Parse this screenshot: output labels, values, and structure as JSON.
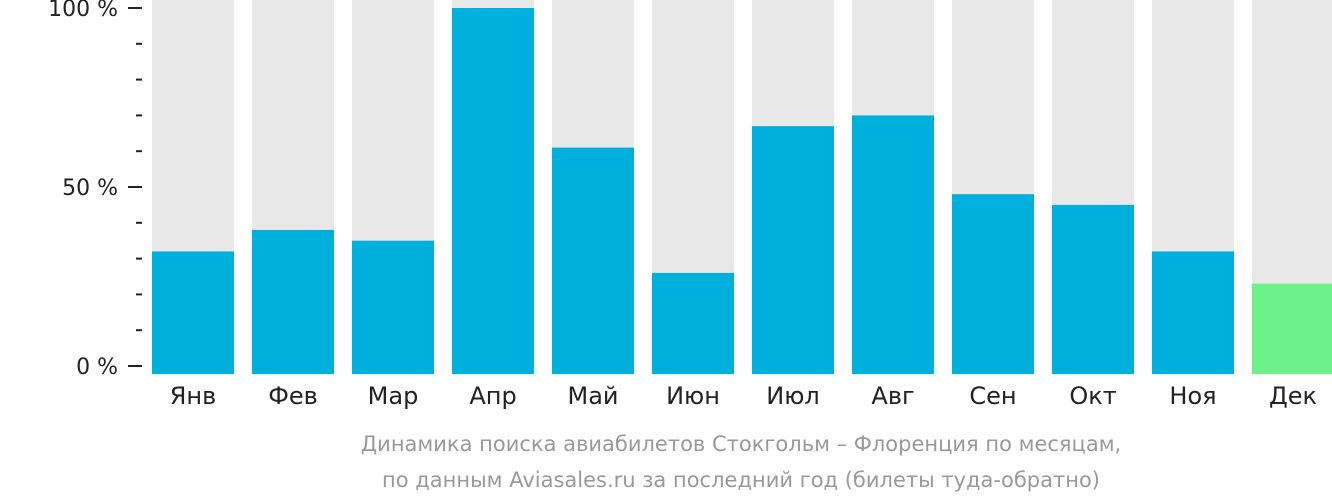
{
  "chart_data": {
    "type": "bar",
    "categories": [
      "Янв",
      "Фев",
      "Мар",
      "Апр",
      "Май",
      "Июн",
      "Июл",
      "Авг",
      "Сен",
      "Окт",
      "Ноя",
      "Дек"
    ],
    "values": [
      32,
      38,
      35,
      100,
      61,
      26,
      67,
      70,
      48,
      45,
      32,
      23
    ],
    "highlight_index": 11,
    "y_ticks": [
      "0 %",
      "50 %",
      "100 %"
    ],
    "ylim": [
      0,
      100
    ],
    "colors": {
      "bar": "#00b0dc",
      "highlight": "#6df28a",
      "track": "#e8e8e8"
    }
  },
  "caption": {
    "line1": "Динамика поиска авиабилетов Стокгольм – Флоренция по месяцам,",
    "line2": "по данным Aviasales.ru за последний год (билеты туда-обратно)"
  }
}
